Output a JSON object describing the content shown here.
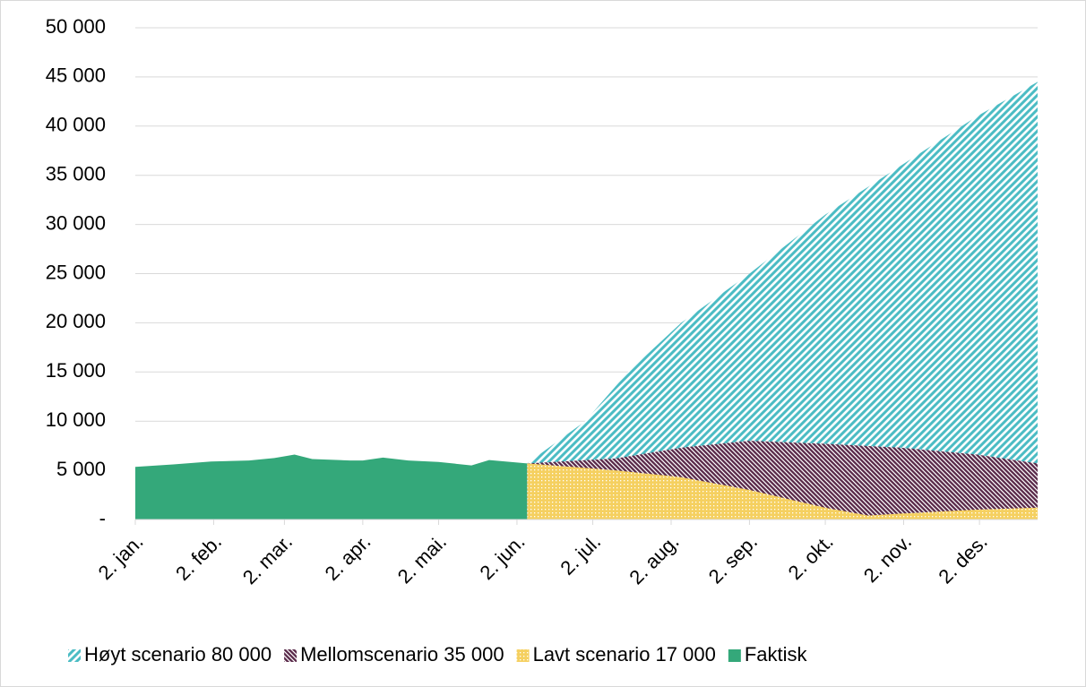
{
  "chart_data": {
    "type": "area",
    "xlim": [
      0,
      357
    ],
    "xticks": [
      {
        "value": 0,
        "label": "2. jan."
      },
      {
        "value": 31,
        "label": "2. feb."
      },
      {
        "value": 59,
        "label": "2. mar."
      },
      {
        "value": 90,
        "label": "2. apr."
      },
      {
        "value": 120,
        "label": "2. mai."
      },
      {
        "value": 151,
        "label": "2. jun."
      },
      {
        "value": 181,
        "label": "2. jul."
      },
      {
        "value": 212,
        "label": "2. aug."
      },
      {
        "value": 243,
        "label": "2. sep."
      },
      {
        "value": 273,
        "label": "2. okt."
      },
      {
        "value": 304,
        "label": "2. nov."
      },
      {
        "value": 334,
        "label": "2. des."
      }
    ],
    "ylim": [
      0,
      50000
    ],
    "yticks": [
      {
        "value": 0,
        "label": "-"
      },
      {
        "value": 5000,
        "label": "5 000"
      },
      {
        "value": 10000,
        "label": "10 000"
      },
      {
        "value": 15000,
        "label": "15 000"
      },
      {
        "value": 20000,
        "label": "20 000"
      },
      {
        "value": 25000,
        "label": "25 000"
      },
      {
        "value": 30000,
        "label": "30 000"
      },
      {
        "value": 35000,
        "label": "35 000"
      },
      {
        "value": 40000,
        "label": "40 000"
      },
      {
        "value": 45000,
        "label": "45 000"
      },
      {
        "value": 50000,
        "label": "50 000"
      }
    ],
    "grid": true,
    "legend": "bottom",
    "series": [
      {
        "name": "Høyt scenario 80 000",
        "color": "#4bbcc4",
        "pattern": "stripes",
        "x": [
          155,
          178,
          195,
          216,
          243,
          273,
          303,
          333,
          357
        ],
        "values": [
          5700,
          10000,
          15000,
          20000,
          25000,
          31000,
          36000,
          41000,
          44500
        ]
      },
      {
        "name": "Mellomscenario 35 000",
        "color": "#5a2a4a",
        "pattern": "hatch",
        "x": [
          155,
          190,
          216,
          243,
          273,
          303,
          333,
          357
        ],
        "values": [
          5700,
          6200,
          7300,
          8000,
          7700,
          7300,
          6600,
          5700
        ]
      },
      {
        "name": "Lavt scenario 17 000",
        "color": "#f5d060",
        "pattern": "dots",
        "x": [
          155,
          190,
          216,
          243,
          273,
          290,
          303,
          333,
          357
        ],
        "values": [
          5700,
          5000,
          4300,
          3000,
          1200,
          400,
          600,
          1000,
          1200
        ]
      },
      {
        "name": "Faktisk",
        "color": "#34a87a",
        "pattern": "solid",
        "x": [
          0,
          15,
          30,
          45,
          55,
          63,
          70,
          85,
          90,
          98,
          108,
          120,
          133,
          140,
          155
        ],
        "values": [
          5350,
          5600,
          5900,
          6000,
          6250,
          6600,
          6150,
          6000,
          6000,
          6300,
          6000,
          5850,
          5500,
          6050,
          5700
        ]
      }
    ]
  }
}
